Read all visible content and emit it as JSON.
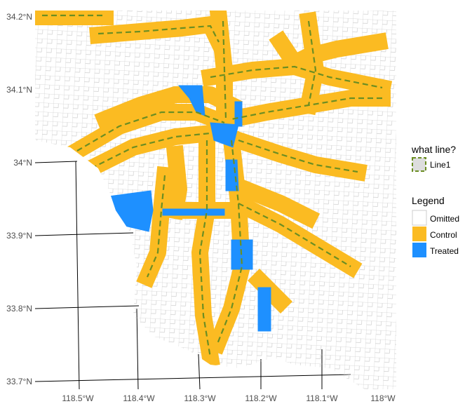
{
  "axes": {
    "y_labels": [
      "34.2°N",
      "34.1°N",
      "34°N",
      "33.9°N",
      "33.8°N",
      "33.7°N"
    ],
    "x_labels": [
      "118.5°W",
      "118.4°W",
      "118.3°W",
      "118.2°W",
      "118.1°W",
      "118°W"
    ]
  },
  "line_legend": {
    "title": "what line?",
    "entries": [
      "Line1"
    ]
  },
  "legend": {
    "title": "Legend",
    "entries": [
      "Omitted",
      "Control",
      "Treated"
    ]
  }
}
